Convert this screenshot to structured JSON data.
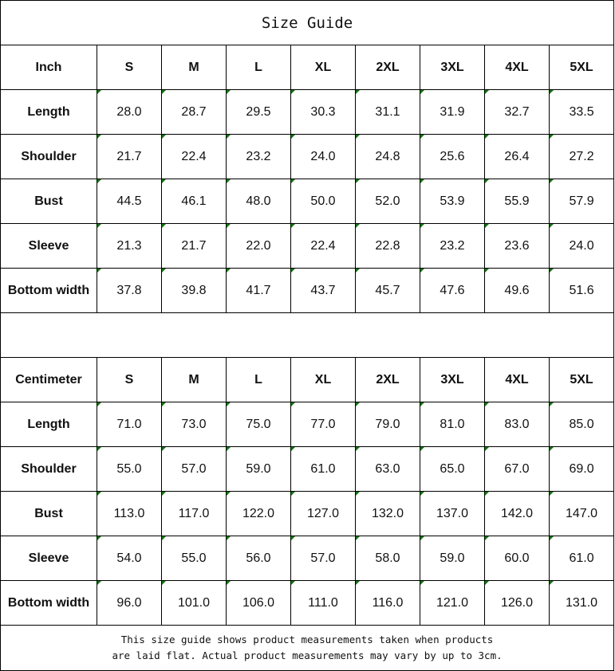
{
  "title": "Size Guide",
  "sizes": [
    "S",
    "M",
    "L",
    "XL",
    "2XL",
    "3XL",
    "4XL",
    "5XL"
  ],
  "inch": {
    "unit_label": "Inch",
    "rows": [
      {
        "label": "Length",
        "values": [
          "28.0",
          "28.7",
          "29.5",
          "30.3",
          "31.1",
          "31.9",
          "32.7",
          "33.5"
        ]
      },
      {
        "label": "Shoulder",
        "values": [
          "21.7",
          "22.4",
          "23.2",
          "24.0",
          "24.8",
          "25.6",
          "26.4",
          "27.2"
        ]
      },
      {
        "label": "Bust",
        "values": [
          "44.5",
          "46.1",
          "48.0",
          "50.0",
          "52.0",
          "53.9",
          "55.9",
          "57.9"
        ]
      },
      {
        "label": "Sleeve",
        "values": [
          "21.3",
          "21.7",
          "22.0",
          "22.4",
          "22.8",
          "23.2",
          "23.6",
          "24.0"
        ]
      },
      {
        "label": "Bottom width",
        "values": [
          "37.8",
          "39.8",
          "41.7",
          "43.7",
          "45.7",
          "47.6",
          "49.6",
          "51.6"
        ]
      }
    ]
  },
  "cm": {
    "unit_label": "Centimeter",
    "rows": [
      {
        "label": "Length",
        "values": [
          "71.0",
          "73.0",
          "75.0",
          "77.0",
          "79.0",
          "81.0",
          "83.0",
          "85.0"
        ]
      },
      {
        "label": "Shoulder",
        "values": [
          "55.0",
          "57.0",
          "59.0",
          "61.0",
          "63.0",
          "65.0",
          "67.0",
          "69.0"
        ]
      },
      {
        "label": "Bust",
        "values": [
          "113.0",
          "117.0",
          "122.0",
          "127.0",
          "132.0",
          "137.0",
          "142.0",
          "147.0"
        ]
      },
      {
        "label": "Sleeve",
        "values": [
          "54.0",
          "55.0",
          "56.0",
          "57.0",
          "58.0",
          "59.0",
          "60.0",
          "61.0"
        ]
      },
      {
        "label": "Bottom width",
        "values": [
          "96.0",
          "101.0",
          "106.0",
          "111.0",
          "116.0",
          "121.0",
          "126.0",
          "131.0"
        ]
      }
    ]
  },
  "note": {
    "line1": "This size guide shows product measurements taken when products",
    "line2": "are laid flat. Actual product measurements may vary by up to 3cm."
  },
  "colors": {
    "cell_marker": "#0a7a0a",
    "border": "#000000"
  }
}
